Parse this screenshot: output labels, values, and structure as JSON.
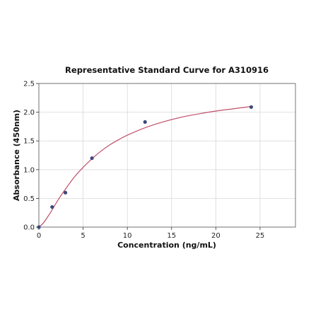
{
  "chart_data": {
    "type": "scatter",
    "title": "Representative Standard Curve for A310916",
    "xlabel": "Concentration (ng/mL)",
    "ylabel": "Absorbance (450nm)",
    "xlim": [
      0,
      29
    ],
    "ylim": [
      0,
      2.5
    ],
    "xticks": [
      0,
      5,
      10,
      15,
      20,
      25
    ],
    "yticks": [
      0.0,
      0.5,
      1.0,
      1.5,
      2.0,
      2.5
    ],
    "xtick_labels": [
      "0",
      "5",
      "10",
      "15",
      "20",
      "25"
    ],
    "ytick_labels": [
      "0.0",
      "0.5",
      "1.0",
      "1.5",
      "2.0",
      "2.5"
    ],
    "grid": true,
    "series": [
      {
        "kind": "points",
        "x": [
          0,
          1.5,
          3,
          6,
          12,
          24
        ],
        "y": [
          0.0,
          0.35,
          0.6,
          1.2,
          1.83,
          2.09
        ],
        "color": "#3b4a7a"
      },
      {
        "kind": "fitted-curve",
        "x": [
          0,
          0.5,
          1,
          1.5,
          2,
          2.5,
          3,
          4,
          5,
          6,
          7,
          8,
          9,
          10,
          12,
          14,
          16,
          18,
          20,
          22,
          24
        ],
        "y": [
          0.0,
          0.07,
          0.18,
          0.3,
          0.43,
          0.55,
          0.66,
          0.87,
          1.04,
          1.19,
          1.32,
          1.43,
          1.52,
          1.6,
          1.73,
          1.83,
          1.91,
          1.97,
          2.02,
          2.06,
          2.1
        ],
        "color": "#c0506a"
      }
    ]
  }
}
